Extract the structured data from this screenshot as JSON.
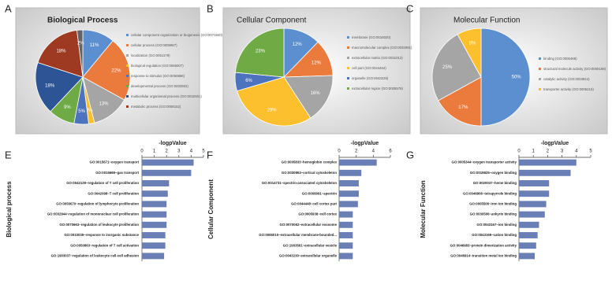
{
  "chart_data": [
    {
      "type": "pie",
      "panel": "A",
      "title": "Biological Process",
      "categories": [
        "cellular component organization or biogenesis (GO:0071840)",
        "cellular process (GO:0009987)",
        "localization (GO:0051179)",
        "biological regulation (GO:0065007)",
        "response to stimulus (GO:0050896)",
        "developmental process (GO:0032502)",
        "multicellular organismal process (GO:0032501)",
        "metabolic process (GO:0008152)",
        null
      ],
      "values": [
        11,
        22,
        13,
        2,
        5,
        9,
        18,
        18,
        2
      ],
      "value_labels": [
        "11%",
        "22%",
        "13%",
        "2%",
        "5%",
        "9%",
        "18%",
        "18%",
        "2%"
      ],
      "colors": [
        "#5b8fd0",
        "#eb7a3d",
        "#a5a5a5",
        "#fcbf2d",
        "#4e73be",
        "#6faa45",
        "#2d5596",
        "#9e3a22",
        "#636363"
      ]
    },
    {
      "type": "pie",
      "panel": "B",
      "title": "Cellular Component",
      "categories": [
        "membrane (GO:0016020)",
        "macromolecular complex (GO:0032991)",
        "extracellular matrix (GO:0031012)",
        "cell part (GO:0044464)",
        "organelle (GO:0043226)",
        "extracellular region (GO:0005576)"
      ],
      "values": [
        12,
        12,
        16,
        29,
        6,
        23
      ],
      "value_labels": [
        "12%",
        "12%",
        "16%",
        "29%",
        "6%",
        "23%"
      ],
      "colors": [
        "#5b8fd0",
        "#eb7a3d",
        "#a5a5a5",
        "#fcbf2d",
        "#4e73be",
        "#6faa45"
      ]
    },
    {
      "type": "pie",
      "panel": "C",
      "title": "Molecular Function",
      "categories": [
        "binding (GO:0005488)",
        "structural molecule activity (GO:0005198)",
        "catalytic activity (GO:0003824)",
        "transporter activity (GO:0005215)"
      ],
      "values": [
        50,
        17,
        25,
        8
      ],
      "value_labels": [
        "50%",
        "17%",
        "25%",
        "8%"
      ],
      "colors": [
        "#5b8fd0",
        "#eb7a3d",
        "#a5a5a5",
        "#fcbf2d"
      ]
    },
    {
      "type": "bar",
      "panel": "E",
      "xlabel": "-logpValue",
      "ylabel": "Biological process",
      "color": "#6a7fb5",
      "categories": [
        "GO:0015671~oxygen transport",
        "GO:0015669~gas transport",
        "GO:0042129~regulation of T cell proliferation",
        "GO:0042098~T cell proliferation",
        "GO:0050670~regulation of lymphocyte proliferation",
        "GO:0032944~regulation of mononuclear cell proliferation",
        "GO:0070663~regulation of leukocyte proliferation",
        "GO:0010035~response to inorganic substance",
        "GO:0050863~regulation of T cell activation",
        "GO:1903037~regulation of leukocyte cell-cell adhesion"
      ],
      "values": [
        4.2,
        4.0,
        2.2,
        2.1,
        2.0,
        2.0,
        2.0,
        1.9,
        1.9,
        1.8
      ],
      "xlim": [
        0,
        5
      ],
      "xticks": [
        0,
        1,
        2,
        3,
        4,
        5
      ]
    },
    {
      "type": "bar",
      "panel": "F",
      "xlabel": "-logpValue",
      "ylabel": "Cellular Component",
      "color": "#6a7fb5",
      "categories": [
        "GO:0005833~hemoglobin complex",
        "GO:0030863~cortical cytoskeleton",
        "GO:0014731~spectrin-associated cytoskeleton",
        "GO:0008091~spectrin",
        "GO:0044448~cell cortex part",
        "GO:0005938~cell cortex",
        "GO:0070062~extracellular exosome",
        "GO:0065010~extracellular membrane-bounded...",
        "GO:1903561~extracellular vesicle",
        "GO:0043230~extracellular organelle"
      ],
      "values": [
        4.4,
        2.6,
        2.3,
        2.3,
        2.2,
        1.6,
        1.6,
        1.6,
        1.6,
        1.6
      ],
      "xlim": [
        0,
        6
      ],
      "xticks": [
        0,
        2,
        4,
        6
      ]
    },
    {
      "type": "bar",
      "panel": "G",
      "xlabel": "-logpValue",
      "ylabel": "Molecular Function",
      "color": "#6a7fb5",
      "categories": [
        "GO:0005344~oxygen transporter activity",
        "GO:0019825~oxygen binding",
        "GO:0020037~heme binding",
        "GO:0046906~tetrapyrrole binding",
        "GO:0005506~iron ion binding",
        "GO:0030506~ankyrin binding",
        "GO:0043167~ion binding",
        "GO:0043169~cation binding",
        "GO:0046983~protein dimerization activity",
        "GO:0046914~transition metal ion binding"
      ],
      "values": [
        4.0,
        3.6,
        2.1,
        2.1,
        1.9,
        1.8,
        1.4,
        1.3,
        1.2,
        1.1
      ],
      "xlim": [
        0,
        5
      ],
      "xticks": [
        0,
        1,
        2,
        3,
        4,
        5
      ]
    }
  ]
}
